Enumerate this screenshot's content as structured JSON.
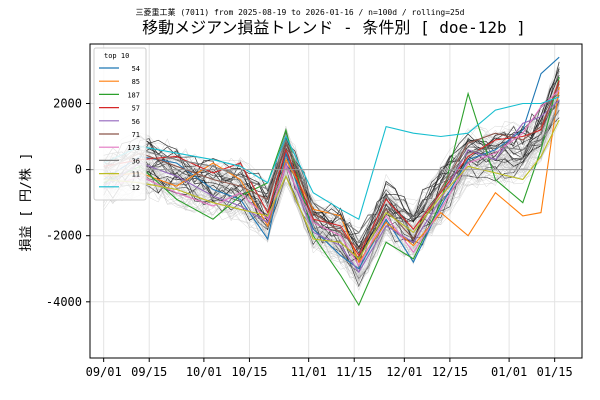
{
  "chart_data": {
    "type": "line",
    "subtitle": "三菱重工業 (7011) from 2025-08-19 to 2026-01-16 / n=100d / rolling=25d",
    "title": "移動メジアン損益トレンド - 条件別 [ doe-12b ]",
    "ylabel": "損益 [ 円/株 ]",
    "xlabel": "",
    "x_range": [
      -3,
      105
    ],
    "ylim": [
      -5700,
      3800
    ],
    "x_ticks": [
      {
        "label": "09/01",
        "pos": 0
      },
      {
        "label": "09/15",
        "pos": 10
      },
      {
        "label": "10/01",
        "pos": 22
      },
      {
        "label": "10/15",
        "pos": 32
      },
      {
        "label": "11/01",
        "pos": 45
      },
      {
        "label": "11/15",
        "pos": 55
      },
      {
        "label": "12/01",
        "pos": 66
      },
      {
        "label": "12/15",
        "pos": 76
      },
      {
        "label": "01/01",
        "pos": 89
      },
      {
        "label": "01/15",
        "pos": 99
      }
    ],
    "y_ticks": [
      -4000,
      -2000,
      0,
      2000
    ],
    "grid": true,
    "legend_title": "top 10",
    "legend_position": "top-left",
    "n_background_lines": 80,
    "series": [
      {
        "name": "54",
        "color": "#1f77b4",
        "x": [
          0,
          8,
          16,
          24,
          30,
          36,
          40,
          46,
          52,
          56,
          62,
          68,
          74,
          80,
          86,
          92,
          96,
          100
        ],
        "values": [
          -300,
          400,
          200,
          -600,
          -900,
          -2100,
          500,
          -1800,
          -2600,
          -3000,
          -1500,
          -2800,
          -1100,
          300,
          600,
          1200,
          2900,
          3400
        ]
      },
      {
        "name": "85",
        "color": "#ff7f0e",
        "x": [
          0,
          8,
          16,
          24,
          30,
          36,
          40,
          46,
          52,
          56,
          62,
          68,
          74,
          80,
          86,
          92,
          96,
          100
        ],
        "values": [
          -200,
          -100,
          -500,
          200,
          -300,
          -1700,
          300,
          -1200,
          -1400,
          -2800,
          -1600,
          -2300,
          -1300,
          -2000,
          -700,
          -1400,
          -1300,
          2500
        ]
      },
      {
        "name": "187",
        "color": "#2ca02c",
        "x": [
          0,
          8,
          16,
          24,
          30,
          36,
          40,
          46,
          52,
          56,
          62,
          68,
          74,
          80,
          86,
          92,
          96,
          100
        ],
        "values": [
          -400,
          100,
          -900,
          -1500,
          -800,
          -400,
          1200,
          -2000,
          -3200,
          -4100,
          -2200,
          -2700,
          -1000,
          2300,
          -300,
          -1000,
          600,
          2800
        ]
      },
      {
        "name": "57",
        "color": "#d62728",
        "x": [
          0,
          8,
          16,
          24,
          30,
          36,
          40,
          46,
          52,
          56,
          62,
          68,
          74,
          80,
          86,
          92,
          96,
          100
        ],
        "values": [
          100,
          300,
          400,
          -100,
          200,
          -1300,
          600,
          -1500,
          -1700,
          -2600,
          -900,
          -1800,
          -700,
          400,
          900,
          1000,
          1200,
          2700
        ]
      },
      {
        "name": "56",
        "color": "#9467bd",
        "x": [
          0,
          8,
          16,
          24,
          30,
          36,
          40,
          46,
          52,
          56,
          62,
          68,
          74,
          80,
          86,
          92,
          96,
          100
        ],
        "values": [
          -500,
          200,
          -200,
          -800,
          -1100,
          -1600,
          200,
          -1900,
          -2300,
          -3100,
          -1700,
          -2200,
          -900,
          600,
          300,
          1400,
          1600,
          2100
        ]
      },
      {
        "name": "71",
        "color": "#8c564b",
        "x": [
          0,
          8,
          16,
          24,
          30,
          36,
          40,
          46,
          52,
          56,
          62,
          68,
          74,
          80,
          86,
          92,
          96,
          100
        ],
        "values": [
          0,
          500,
          100,
          -300,
          -500,
          -900,
          800,
          -1300,
          -1900,
          -2400,
          -1200,
          -2100,
          -600,
          800,
          1100,
          900,
          1300,
          2600
        ]
      },
      {
        "name": "173",
        "color": "#e377c2",
        "x": [
          0,
          8,
          16,
          24,
          30,
          36,
          40,
          46,
          52,
          56,
          62,
          68,
          74,
          80,
          86,
          92,
          96,
          100
        ],
        "values": [
          -600,
          -200,
          -700,
          -1100,
          -700,
          -1500,
          100,
          -1600,
          -2000,
          -2900,
          -1400,
          -2500,
          -1200,
          200,
          500,
          1100,
          1900,
          2400
        ]
      },
      {
        "name": "36",
        "color": "#7f7f7f",
        "x": [
          0,
          8,
          16,
          24,
          30,
          36,
          40,
          46,
          52,
          56,
          62,
          68,
          74,
          80,
          86,
          92,
          96,
          100
        ],
        "values": [
          -100,
          600,
          300,
          100,
          -200,
          -600,
          900,
          -1000,
          -1500,
          -1900,
          -800,
          -1500,
          -400,
          500,
          700,
          600,
          900,
          1800
        ]
      },
      {
        "name": "11",
        "color": "#bcbd22",
        "x": [
          0,
          8,
          16,
          24,
          30,
          36,
          40,
          46,
          52,
          56,
          62,
          68,
          74,
          80,
          86,
          92,
          96,
          100
        ],
        "values": [
          -300,
          -400,
          -600,
          -1000,
          -1200,
          -1400,
          -200,
          -2100,
          -2200,
          -2700,
          -1300,
          -1900,
          -800,
          100,
          -100,
          -300,
          400,
          1500
        ]
      },
      {
        "name": "12",
        "color": "#17becf",
        "x": [
          0,
          8,
          16,
          24,
          30,
          36,
          40,
          46,
          52,
          56,
          62,
          68,
          74,
          80,
          86,
          92,
          96,
          100
        ],
        "values": [
          200,
          700,
          500,
          300,
          100,
          -400,
          1000,
          -700,
          -1200,
          -1500,
          1300,
          1100,
          1000,
          1100,
          1800,
          2000,
          2000,
          2200
        ]
      }
    ]
  }
}
